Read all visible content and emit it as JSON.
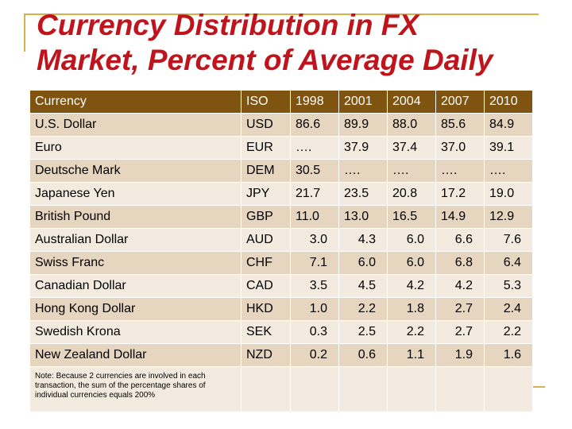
{
  "title": [
    "Currency Distribution in FX",
    "Market, Percent of Average Daily"
  ],
  "table": {
    "header": [
      "Currency",
      "ISO",
      "1998",
      "2001",
      "2004",
      "2007",
      "2010"
    ],
    "rows": [
      [
        "U.S. Dollar",
        "USD",
        "86.6",
        "89.9",
        "88.0",
        "85.6",
        "84.9"
      ],
      [
        "Euro",
        "EUR",
        "….",
        "37.9",
        "37.4",
        "37.0",
        "39.1"
      ],
      [
        "Deutsche Mark",
        "DEM",
        "30.5",
        "….",
        "….",
        "….",
        "…."
      ],
      [
        "Japanese Yen",
        "JPY",
        "21.7",
        "23.5",
        "20.8",
        "17.2",
        "19.0"
      ],
      [
        "British Pound",
        "GBP",
        "11.0",
        "13.0",
        "16.5",
        "14.9",
        "12.9"
      ],
      [
        "Australian Dollar",
        "AUD",
        "3.0",
        "4.3",
        "6.0",
        "6.6",
        "7.6"
      ],
      [
        "Swiss Franc",
        "CHF",
        "7.1",
        "6.0",
        "6.0",
        "6.8",
        "6.4"
      ],
      [
        "Canadian Dollar",
        "CAD",
        "3.5",
        "4.5",
        "4.2",
        "4.2",
        "5.3"
      ],
      [
        "Hong Kong Dollar",
        "HKD",
        "1.0",
        "2.2",
        "1.8",
        "2.7",
        "2.4"
      ],
      [
        "Swedish Krona",
        "SEK",
        "0.3",
        "2.5",
        "2.2",
        "2.7",
        "2.2"
      ],
      [
        "New Zealand Dollar",
        "NZD",
        "0.2",
        "0.6",
        "1.1",
        "1.9",
        "1.6"
      ]
    ],
    "note": "Note:  Because 2 currencies are involved in each transaction, the sum of the percentage shares of individual currencies equals 200%"
  }
}
